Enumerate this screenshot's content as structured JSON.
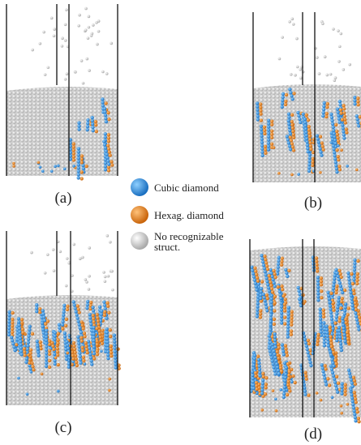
{
  "panels": [
    {
      "label": "(a)"
    },
    {
      "label": "(b)"
    },
    {
      "label": "(c)"
    },
    {
      "label": "(d)"
    }
  ],
  "legend": {
    "items": [
      {
        "label": "Cubic diamond"
      },
      {
        "label": "Hexag. diamond"
      },
      {
        "label": "No recognizable struct."
      }
    ]
  }
}
